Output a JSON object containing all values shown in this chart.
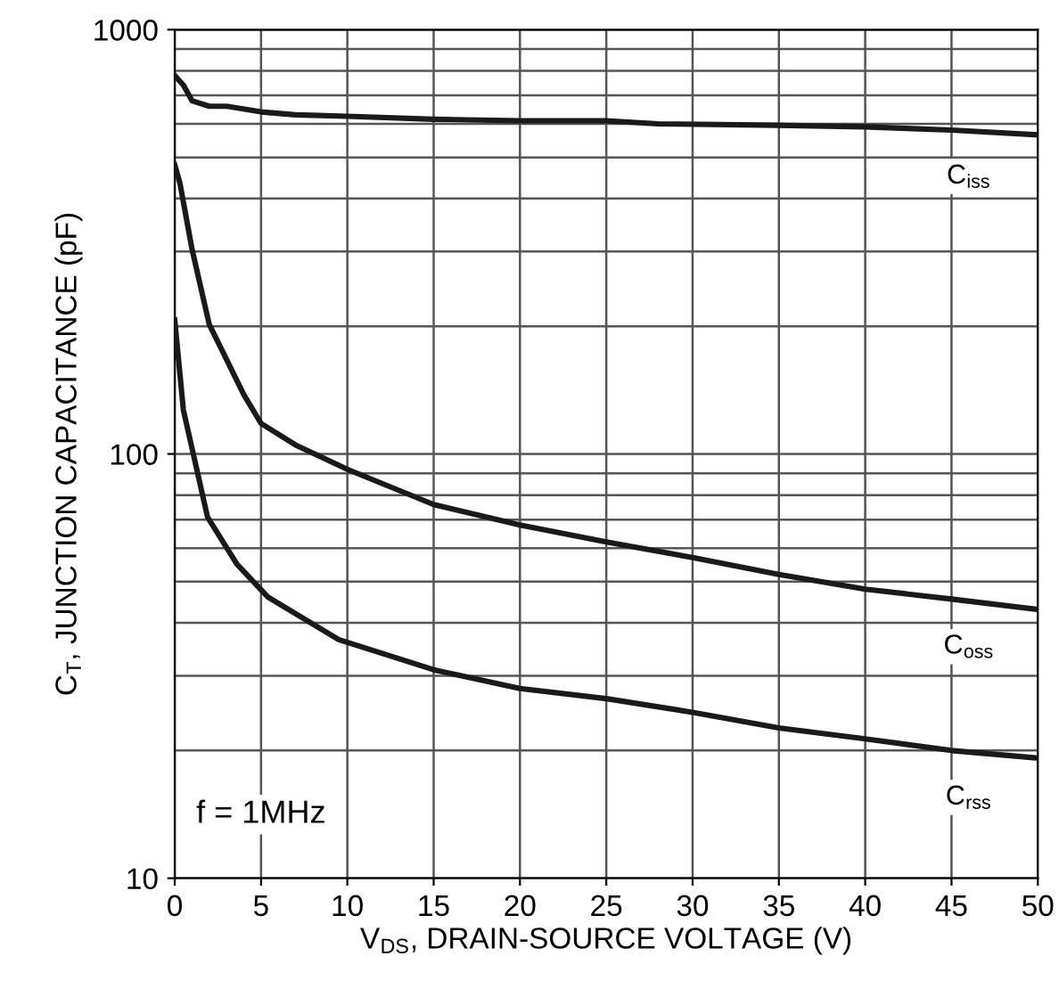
{
  "chart_data": {
    "type": "line",
    "xlabel": "V$_{DS}$, DRAIN-SOURCE VOLTAGE (V)",
    "ylabel": "C$_{T}$, JUNCTION CAPACITANCE (pF)",
    "log": "y",
    "xlim": [
      0,
      50
    ],
    "ylim": [
      10,
      1000
    ],
    "xticks": [
      0,
      5,
      10,
      15,
      20,
      25,
      30,
      35,
      40,
      45,
      50
    ],
    "yticks": [
      10,
      100,
      1000
    ],
    "grid": true,
    "legend": false,
    "marker": "none",
    "line_style": "solid",
    "annotations": [
      "f = 1MHz"
    ],
    "series": [
      {
        "name": "C$_{iss}$",
        "color": "#1a1a1a",
        "x": [
          0,
          0.5,
          1,
          2,
          3,
          5,
          7,
          10,
          15,
          20,
          25,
          28,
          35,
          40,
          45,
          50
        ],
        "values": [
          780,
          740,
          680,
          660,
          660,
          640,
          630,
          625,
          615,
          610,
          610,
          600,
          595,
          590,
          580,
          565
        ]
      },
      {
        "name": "C$_{oss}$",
        "color": "#1a1a1a",
        "x": [
          0,
          0.3,
          1,
          2,
          3,
          4,
          5,
          7,
          10,
          15,
          20,
          25,
          30,
          35,
          40,
          45,
          50
        ],
        "values": [
          480,
          435,
          304,
          202,
          167,
          138,
          118,
          105,
          92,
          76,
          68,
          62,
          57,
          52,
          48,
          45.5,
          43
        ]
      },
      {
        "name": "C$_{rss}$",
        "color": "#1a1a1a",
        "x": [
          0,
          0.5,
          1.2,
          1.9,
          3.6,
          5.4,
          9.5,
          15,
          20,
          25,
          30,
          35,
          40,
          45,
          50
        ],
        "values": [
          207,
          127,
          95,
          71,
          55,
          46,
          36.5,
          31,
          28,
          26.5,
          24.6,
          22.6,
          21.3,
          20,
          19.2
        ]
      }
    ]
  }
}
